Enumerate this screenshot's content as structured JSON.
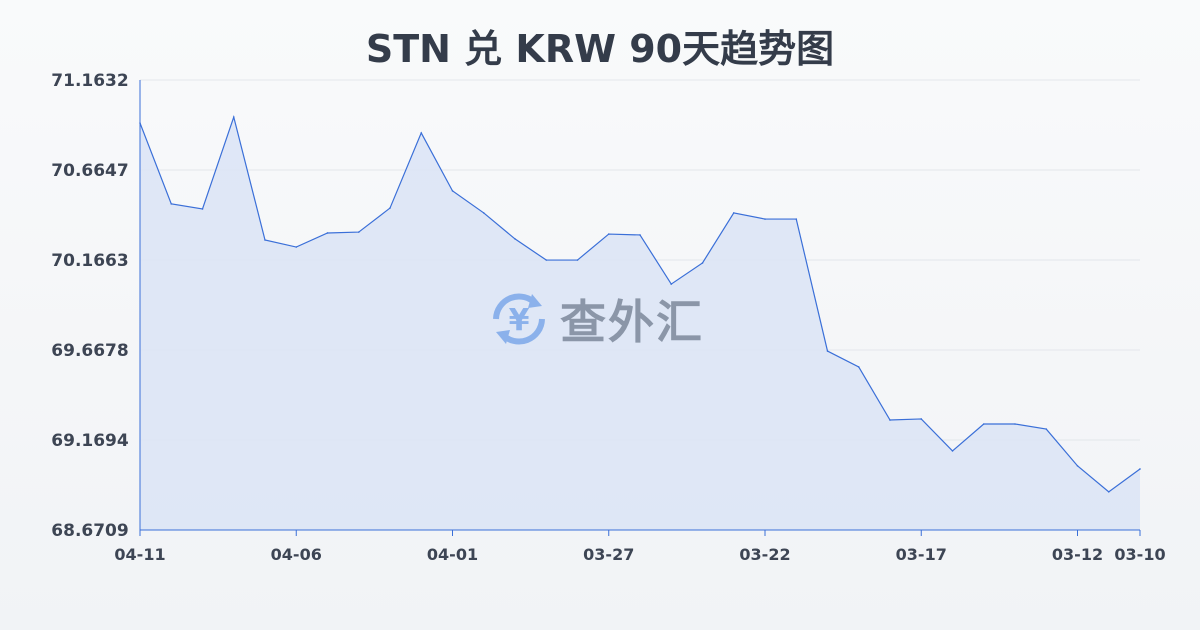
{
  "chart_data": {
    "type": "area",
    "title": "STN 兑 KRW 90天趋势图",
    "x": [
      "04-11",
      "04-10",
      "04-09",
      "04-08",
      "04-07",
      "04-06",
      "04-05",
      "04-04",
      "04-03",
      "04-02",
      "04-01",
      "03-31",
      "03-30",
      "03-29",
      "03-28",
      "03-27",
      "03-26",
      "03-25",
      "03-24",
      "03-23",
      "03-22",
      "03-21",
      "03-20",
      "03-19",
      "03-18",
      "03-17",
      "03-16",
      "03-15",
      "03-14",
      "03-13",
      "03-12",
      "03-11",
      "03-10"
    ],
    "values": [
      70.925,
      70.477,
      70.449,
      70.958,
      70.277,
      70.238,
      70.316,
      70.321,
      70.454,
      70.87,
      70.549,
      70.427,
      70.283,
      70.166,
      70.166,
      70.31,
      70.305,
      70.033,
      70.15,
      70.427,
      70.393,
      70.393,
      69.662,
      69.574,
      69.28,
      69.286,
      69.109,
      69.258,
      69.258,
      69.23,
      69.026,
      68.882,
      69.009
    ],
    "ylim": [
      68.6709,
      71.1632
    ],
    "yticks": [
      "71.1632",
      "70.6647",
      "70.1663",
      "69.6678",
      "69.1694",
      "68.6709"
    ],
    "xticks": [
      "04-11",
      "04-06",
      "04-01",
      "03-27",
      "03-22",
      "03-17",
      "03-12",
      "03-10"
    ],
    "grid": true,
    "colors": {
      "line": "#3a6fd8",
      "fill": "#dbe4f6"
    }
  },
  "watermark": {
    "text": "查外汇",
    "icon": "yen-exchange-icon"
  }
}
